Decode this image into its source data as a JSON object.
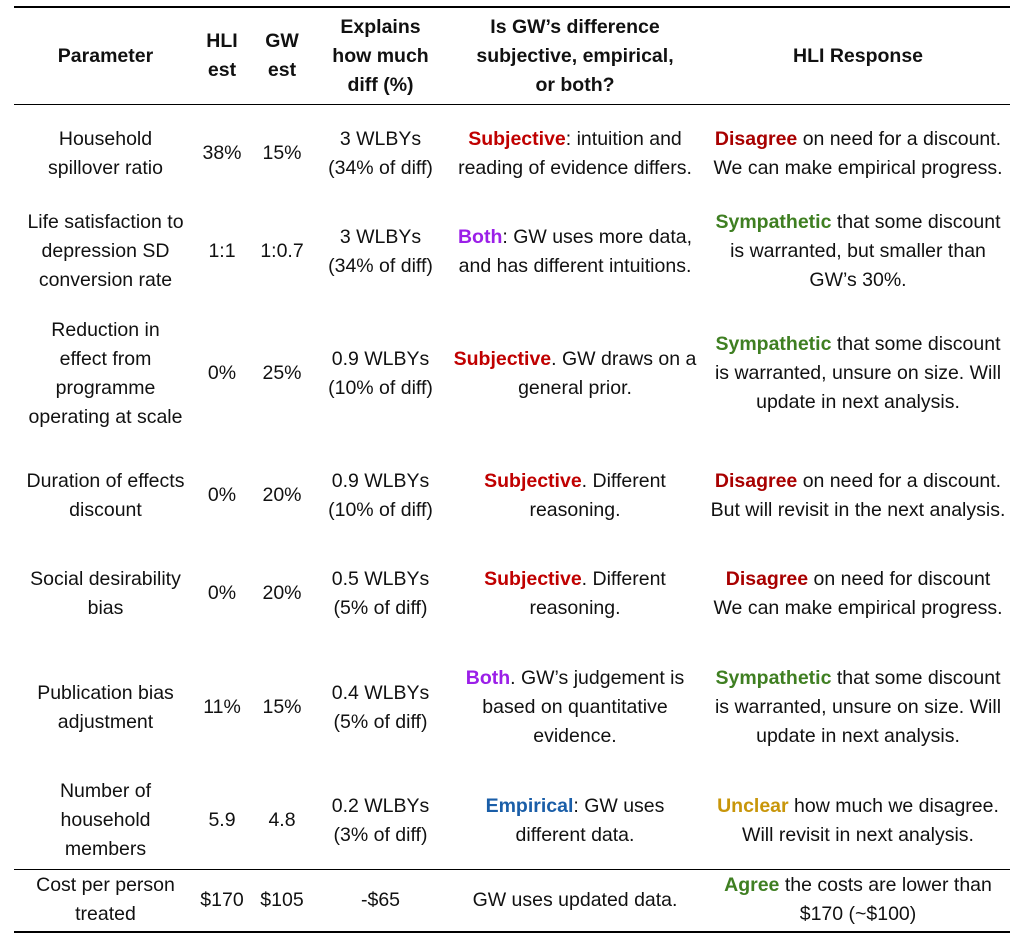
{
  "colors": {
    "subjective": "#c00000",
    "both": "#9b1fe8",
    "empirical": "#1a5ea8",
    "disagree": "#a80000",
    "sympathetic": "#3f7f22",
    "unclear": "#c8960a",
    "agree": "#3f7f22"
  },
  "header": {
    "parameter": "Parameter",
    "hli_est": [
      "HLI",
      "est"
    ],
    "gw_est": [
      "GW",
      "est"
    ],
    "explains": [
      "Explains",
      "how much",
      "diff (%)"
    ],
    "kind": [
      "Is GW’s difference",
      "subjective, empirical,",
      "or both?"
    ],
    "response": "HLI Response"
  },
  "rows": [
    {
      "param": [
        "Household",
        "spillover ratio"
      ],
      "hli": "38%",
      "gw": "15%",
      "explains": [
        "3 WLBYs",
        "(34% of diff)"
      ],
      "kind_kw": "Subjective",
      "kind_color": "subjective",
      "kind_text": ": intuition and reading of evidence differs.",
      "resp_kw": "Disagree",
      "resp_color": "disagree",
      "resp_text": " on need for a discount. We can make empirical progress."
    },
    {
      "param": [
        "Life satisfaction to",
        "depression SD",
        "conversion rate"
      ],
      "hli": "1:1",
      "gw": "1:0.7",
      "explains": [
        "3 WLBYs",
        "(34% of diff)"
      ],
      "kind_kw": "Both",
      "kind_color": "both",
      "kind_text": ": GW uses more data, and has different intuitions.",
      "resp_kw": "Sympathetic",
      "resp_color": "sympathetic",
      "resp_text": " that some discount is warranted, but smaller than GW’s 30%."
    },
    {
      "param": [
        "Reduction in",
        "effect from",
        "programme",
        "operating at scale"
      ],
      "hli": "0%",
      "gw": "25%",
      "explains": [
        "0.9 WLBYs",
        "(10% of diff)"
      ],
      "kind_kw": "Subjective",
      "kind_color": "subjective",
      "kind_text": ". GW draws on a general prior.",
      "resp_kw": "Sympathetic",
      "resp_color": "sympathetic",
      "resp_text": " that some discount is warranted, unsure on size. Will update in next analysis."
    },
    {
      "param": [
        "Duration of effects",
        "discount"
      ],
      "hli": "0%",
      "gw": "20%",
      "explains": [
        "0.9 WLBYs",
        "(10% of diff)"
      ],
      "kind_kw": "Subjective",
      "kind_color": "subjective",
      "kind_text": ". Different reasoning.",
      "resp_kw": "Disagree",
      "resp_color": "disagree",
      "resp_text": " on need for a discount. But will revisit in the next analysis."
    },
    {
      "param": [
        "Social desirability",
        "bias"
      ],
      "hli": "0%",
      "gw": "20%",
      "explains": [
        "0.5 WLBYs",
        "(5% of diff)"
      ],
      "kind_kw": "Subjective",
      "kind_color": "subjective",
      "kind_text": ". Different reasoning.",
      "resp_kw": "Disagree",
      "resp_color": "disagree",
      "resp_text": " on need for discount We can make empirical progress."
    },
    {
      "param": [
        "Publication bias",
        "adjustment"
      ],
      "hli": "11%",
      "gw": "15%",
      "explains": [
        "0.4 WLBYs",
        "(5% of diff)"
      ],
      "kind_kw": "Both",
      "kind_color": "both",
      "kind_text": ". GW’s judgement is based on quantitative evidence.",
      "resp_kw": "Sympathetic",
      "resp_color": "sympathetic",
      "resp_text": " that some discount is warranted, unsure on size. Will update in next analysis."
    },
    {
      "param": [
        "Number of",
        "household",
        "members"
      ],
      "hli": "5.9",
      "gw": "4.8",
      "explains": [
        "0.2 WLBYs",
        "(3% of diff)"
      ],
      "kind_kw": "Empirical",
      "kind_color": "empirical",
      "kind_text": ": GW uses different data.",
      "resp_kw": "Unclear",
      "resp_color": "unclear",
      "resp_text": " how much we disagree. Will revisit in next analysis."
    },
    {
      "param": [
        "Cost per person",
        "treated"
      ],
      "hli": "$170",
      "gw": "$105",
      "explains": [
        "-$65"
      ],
      "kind_kw": "",
      "kind_color": "subjective",
      "kind_text": "GW uses updated data.",
      "resp_kw": "Agree",
      "resp_color": "agree",
      "resp_text": " the costs are lower than $170 (~$100)"
    }
  ]
}
